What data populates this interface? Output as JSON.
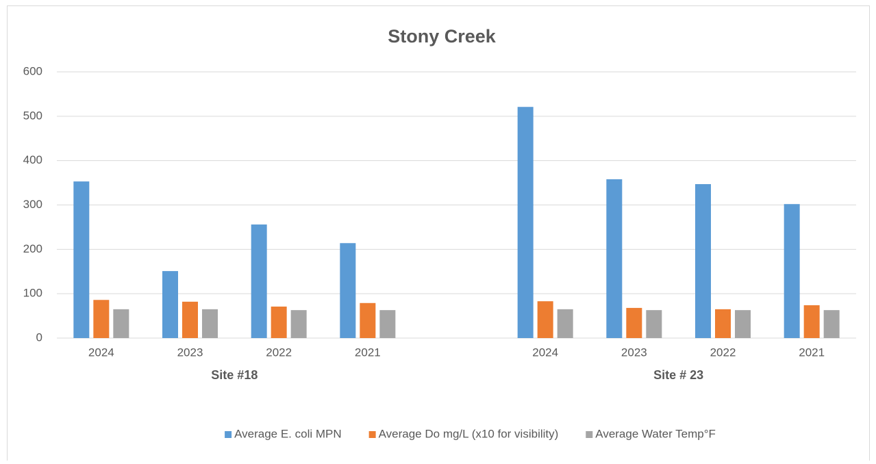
{
  "chart_data": {
    "type": "bar",
    "title": "Stony Creek",
    "categories": [
      "2024",
      "2023",
      "2022",
      "2021",
      null,
      "2024",
      "2023",
      "2022",
      "2021"
    ],
    "groups": [
      "Site #18",
      "Site # 23"
    ],
    "series": [
      {
        "name": "Average E. coli MPN",
        "color": "#5b9bd5",
        "values": [
          353,
          151,
          256,
          214,
          null,
          521,
          358,
          347,
          302
        ]
      },
      {
        "name": "Average Do mg/L (x10 for visibility)",
        "color": "#ed7d31",
        "values": [
          86,
          82,
          71,
          79,
          null,
          83,
          68,
          65,
          74
        ]
      },
      {
        "name": "Average Water Temp°F",
        "color": "#a5a5a5",
        "values": [
          65,
          65,
          63,
          63,
          null,
          65,
          63,
          63,
          63
        ]
      }
    ],
    "ylim": [
      0,
      600
    ],
    "yticks": [
      0,
      100,
      200,
      300,
      400,
      500,
      600
    ],
    "grid": true,
    "legend": "bottom"
  }
}
